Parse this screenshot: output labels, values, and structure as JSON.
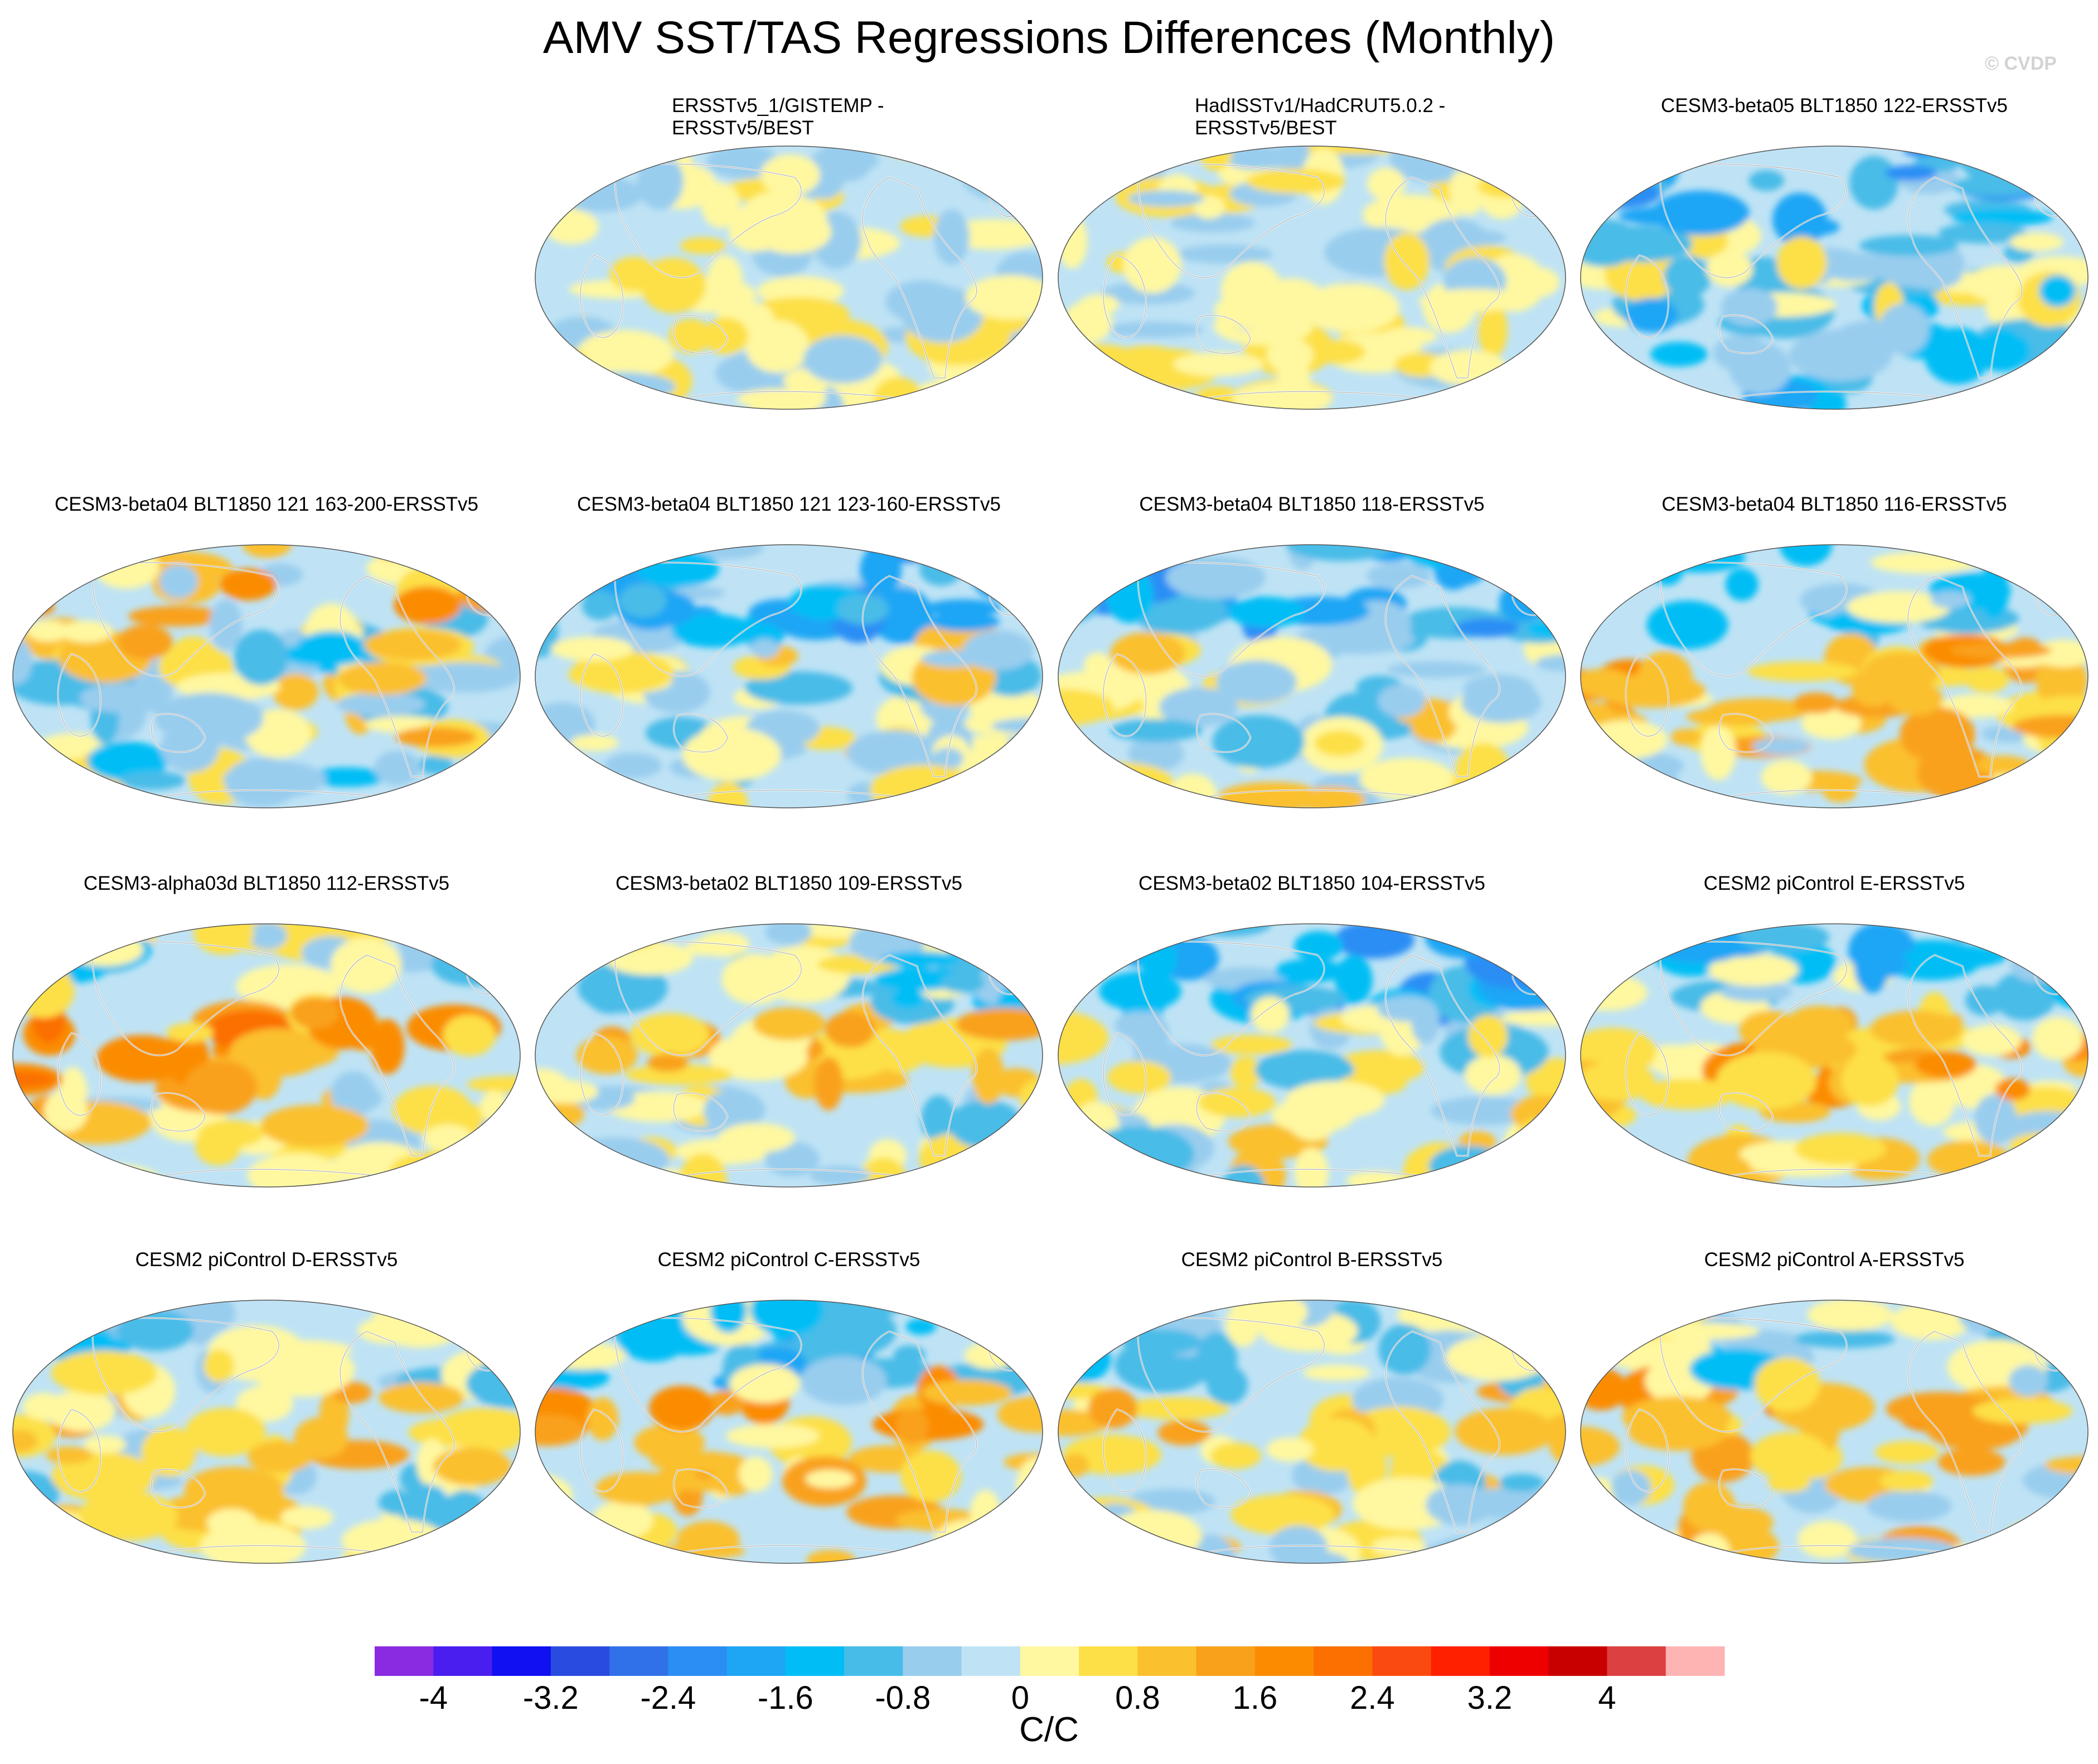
{
  "title": "AMV SST/TAS Regressions Differences (Monthly)",
  "watermark": "© CVDP",
  "chart_data": {
    "type": "heatmap",
    "projection": "Robinson (global maps)",
    "panels": [
      {
        "title_line1": "ERSSTv5_1/GISTEMP -",
        "title_line2": "ERSSTv5/BEST",
        "pattern": "weak"
      },
      {
        "title_line1": "HadISSTv1/HadCRUT5.0.2 -",
        "title_line2": "ERSSTv5/BEST",
        "pattern": "weak"
      },
      {
        "title_line1": "CESM3-beta05 BLT1850 122-ERSSTv5",
        "title_line2": "",
        "pattern": "cool"
      },
      {
        "title_line1": "CESM3-beta04 BLT1850 121 163-200-ERSSTv5",
        "title_line2": "",
        "pattern": "mixed-warm-north"
      },
      {
        "title_line1": "CESM3-beta04 BLT1850 121 123-160-ERSSTv5",
        "title_line2": "",
        "pattern": "cool-north"
      },
      {
        "title_line1": "CESM3-beta04 BLT1850 118-ERSSTv5",
        "title_line2": "",
        "pattern": "cool-north"
      },
      {
        "title_line1": "CESM3-beta04 BLT1850 116-ERSSTv5",
        "title_line2": "",
        "pattern": "warm-equator"
      },
      {
        "title_line1": "CESM3-alpha03d BLT1850 112-ERSSTv5",
        "title_line2": "",
        "pattern": "warm-pacific"
      },
      {
        "title_line1": "CESM3-beta02 BLT1850 109-ERSSTv5",
        "title_line2": "",
        "pattern": "mixed"
      },
      {
        "title_line1": "CESM3-beta02 BLT1850 104-ERSSTv5",
        "title_line2": "",
        "pattern": "cool-north"
      },
      {
        "title_line1": "CESM2 piControl E-ERSSTv5",
        "title_line2": "",
        "pattern": "warm-equator"
      },
      {
        "title_line1": "CESM2 piControl D-ERSSTv5",
        "title_line2": "",
        "pattern": "mixed"
      },
      {
        "title_line1": "CESM2 piControl C-ERSSTv5",
        "title_line2": "",
        "pattern": "warm-equator"
      },
      {
        "title_line1": "CESM2 piControl B-ERSSTv5",
        "title_line2": "",
        "pattern": "mixed"
      },
      {
        "title_line1": "CESM2 piControl A-ERSSTv5",
        "title_line2": "",
        "pattern": "warm-pacific"
      }
    ],
    "colorbar": {
      "colors": [
        "#8a2be2",
        "#4b1ef0",
        "#1010f0",
        "#2a4be0",
        "#3070e8",
        "#2a8ef5",
        "#1ea6f5",
        "#00bef5",
        "#48bce8",
        "#99cdee",
        "#bfe3f5",
        "#fff8a0",
        "#fde047",
        "#fbc02d",
        "#f9a11b",
        "#fb8c00",
        "#fb7000",
        "#fb4a10",
        "#ff2000",
        "#ef0000",
        "#c80000",
        "#dc4040",
        "#ffb4b4"
      ],
      "tick_values": [
        -4,
        -3.2,
        -2.4,
        -1.6,
        -0.8,
        0,
        0.8,
        1.6,
        2.4,
        3.2,
        4
      ],
      "tick_labels": [
        "-4",
        "-3.2",
        "-2.4",
        "-1.6",
        "-0.8",
        "0",
        "0.8",
        "1.6",
        "2.4",
        "3.2",
        "4"
      ],
      "units": "C/C"
    }
  }
}
